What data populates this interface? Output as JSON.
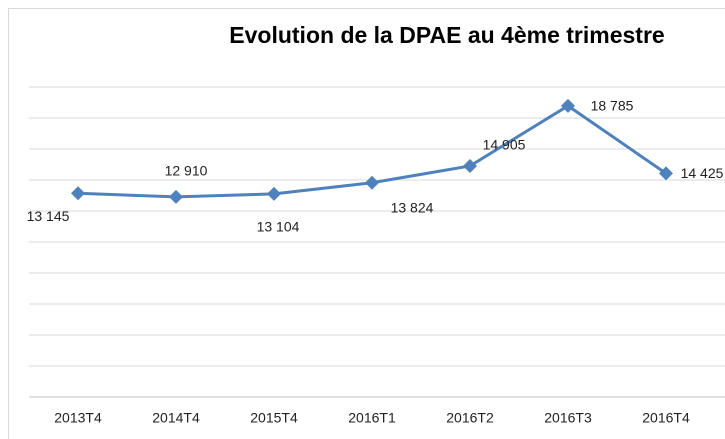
{
  "chart_data": {
    "type": "line",
    "title": "Evolution de la DPAE au 4ème trimestre",
    "categories": [
      "2013T4",
      "2014T4",
      "2015T4",
      "2016T1",
      "2016T2",
      "2016T3",
      "2016T4"
    ],
    "series": [
      {
        "name": "DPAE",
        "color": "#4f81bd",
        "values": [
          13145,
          12910,
          13104,
          13824,
          14905,
          18785,
          14425
        ],
        "value_labels": [
          "13 145",
          "12 910",
          "13 104",
          "13 824",
          "14 905",
          "18 785",
          "14 425"
        ]
      }
    ],
    "ylim": [
      0,
      20000
    ],
    "yticks": [
      0,
      2000,
      4000,
      6000,
      8000,
      10000,
      12000,
      14000,
      16000,
      18000,
      20000
    ],
    "grid": true
  }
}
